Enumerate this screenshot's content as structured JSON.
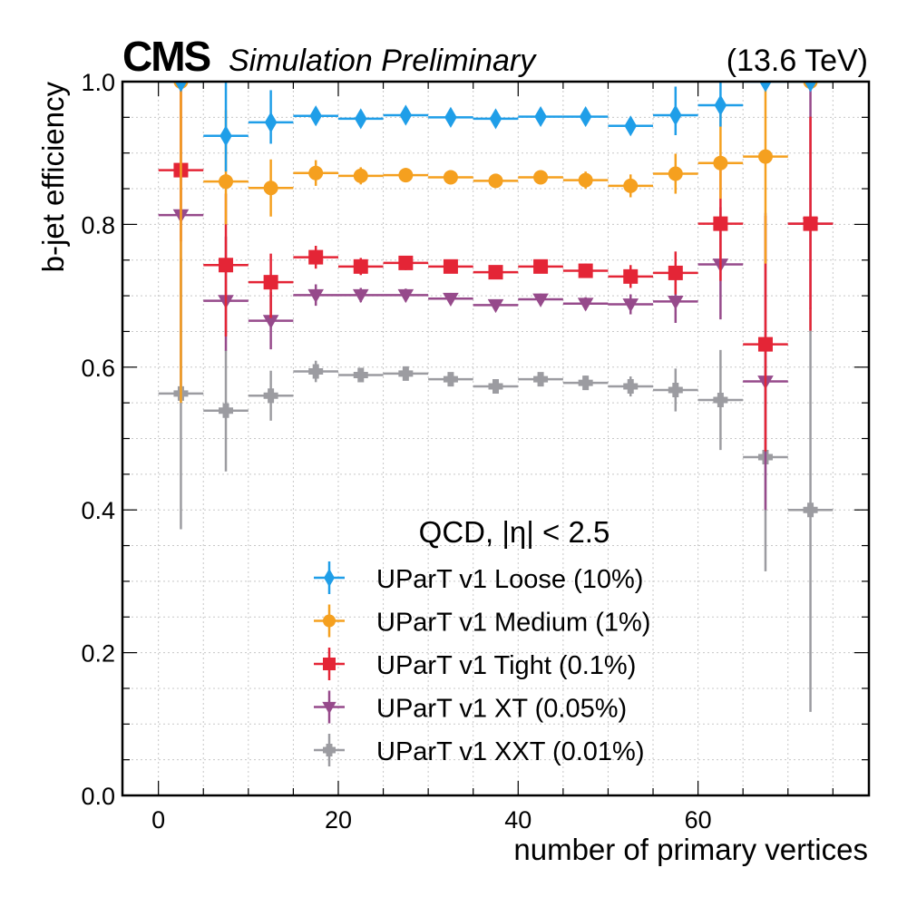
{
  "chart_data": {
    "type": "scatter",
    "experiment_label": "CMS",
    "experiment_sublabel": "Simulation Preliminary",
    "energy_label": "(13.6 TeV)",
    "xlabel": "number of primary vertices",
    "ylabel": "b-jet efficiency",
    "xlim": [
      -4,
      79
    ],
    "ylim": [
      0.0,
      1.0
    ],
    "x_ticks": [
      0,
      20,
      40,
      60
    ],
    "x_tick_labels": [
      "0",
      "20",
      "40",
      "60"
    ],
    "x_minor_step": 5,
    "y_ticks": [
      0.0,
      0.2,
      0.4,
      0.6,
      0.8,
      1.0
    ],
    "y_tick_labels": [
      "0.0",
      "0.2",
      "0.4",
      "0.6",
      "0.8",
      "1.0"
    ],
    "y_minor_step": 0.05,
    "grid": true,
    "legend_title": "QCD, |η| < 2.5",
    "legend_position": "lower-center",
    "bin_edges": [
      0,
      5,
      10,
      15,
      20,
      25,
      30,
      35,
      40,
      45,
      50,
      55,
      60,
      65,
      70,
      75
    ],
    "x": [
      2.5,
      7.5,
      12.5,
      17.5,
      22.5,
      27.5,
      32.5,
      37.5,
      42.5,
      47.5,
      52.5,
      57.5,
      62.5,
      67.5,
      72.5
    ],
    "series": [
      {
        "name": "UParT v1 Loose (10%)",
        "color": "#1f9ee8",
        "marker": "diamond",
        "values": [
          1.0,
          0.924,
          0.943,
          0.952,
          0.948,
          0.953,
          0.95,
          0.948,
          0.951,
          0.951,
          0.938,
          0.953,
          0.967,
          1.0,
          1.0
        ],
        "err_low": [
          0.0,
          0.05,
          0.03,
          0.012,
          0.01,
          0.008,
          0.007,
          0.007,
          0.007,
          0.008,
          0.012,
          0.028,
          0.03,
          0.0,
          0.0
        ],
        "err_high": [
          0.0,
          0.076,
          0.045,
          0.012,
          0.01,
          0.008,
          0.007,
          0.007,
          0.007,
          0.008,
          0.012,
          0.04,
          0.033,
          0.0,
          0.0
        ]
      },
      {
        "name": "UParT v1 Medium (1%)",
        "color": "#f5a01f",
        "marker": "circle",
        "values": [
          1.0,
          0.86,
          0.851,
          0.872,
          0.868,
          0.869,
          0.866,
          0.861,
          0.866,
          0.862,
          0.854,
          0.871,
          0.886,
          0.895,
          1.0
        ],
        "err_low": [
          0.45,
          0.06,
          0.04,
          0.018,
          0.012,
          0.01,
          0.009,
          0.009,
          0.008,
          0.012,
          0.016,
          0.028,
          0.05,
          0.15,
          0.0
        ],
        "err_high": [
          0.0,
          0.1,
          0.04,
          0.018,
          0.012,
          0.01,
          0.009,
          0.009,
          0.008,
          0.012,
          0.016,
          0.028,
          0.08,
          0.105,
          0.0
        ]
      },
      {
        "name": "UParT v1 Tight (0.1%)",
        "color": "#e42536",
        "marker": "square",
        "values": [
          0.876,
          0.743,
          0.719,
          0.754,
          0.741,
          0.746,
          0.741,
          0.733,
          0.741,
          0.735,
          0.727,
          0.732,
          0.801,
          0.632,
          0.801
        ],
        "err_low": [
          0.1,
          0.1,
          0.05,
          0.016,
          0.012,
          0.01,
          0.009,
          0.008,
          0.008,
          0.01,
          0.016,
          0.03,
          0.08,
          0.15,
          0.15
        ],
        "err_high": [
          0.124,
          0.1,
          0.04,
          0.016,
          0.012,
          0.01,
          0.009,
          0.008,
          0.008,
          0.01,
          0.016,
          0.03,
          0.09,
          0.18,
          0.15
        ]
      },
      {
        "name": "UParT v1 XT (0.05%)",
        "color": "#964a8b",
        "marker": "triangle-down",
        "values": [
          0.813,
          0.693,
          0.665,
          0.701,
          0.701,
          0.701,
          0.696,
          0.687,
          0.695,
          0.689,
          0.688,
          0.692,
          0.744,
          0.58,
          0.801
        ],
        "err_low": [
          0.24,
          0.07,
          0.04,
          0.015,
          0.01,
          0.009,
          0.008,
          0.008,
          0.008,
          0.009,
          0.014,
          0.03,
          0.077,
          0.18,
          0.12
        ],
        "err_high": [
          0.187,
          0.09,
          0.04,
          0.015,
          0.01,
          0.009,
          0.008,
          0.008,
          0.008,
          0.009,
          0.014,
          0.03,
          0.08,
          0.236,
          0.199
        ]
      },
      {
        "name": "UParT v1 XXT (0.01%)",
        "color": "#9c9ca1",
        "marker": "plus",
        "values": [
          0.563,
          0.539,
          0.56,
          0.594,
          0.589,
          0.591,
          0.583,
          0.573,
          0.583,
          0.578,
          0.573,
          0.568,
          0.554,
          0.474,
          0.4
        ],
        "err_low": [
          0.19,
          0.085,
          0.035,
          0.015,
          0.01,
          0.009,
          0.008,
          0.008,
          0.008,
          0.01,
          0.014,
          0.03,
          0.07,
          0.16,
          0.283
        ],
        "err_high": [
          0.19,
          0.085,
          0.035,
          0.015,
          0.01,
          0.009,
          0.008,
          0.008,
          0.008,
          0.01,
          0.014,
          0.03,
          0.07,
          0.16,
          0.283
        ]
      }
    ]
  }
}
